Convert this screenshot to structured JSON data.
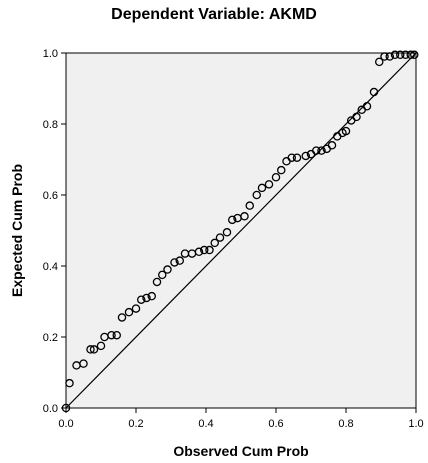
{
  "chart_data": {
    "type": "scatter",
    "title": "Dependent Variable: AKMD",
    "xlabel": "Observed Cum Prob",
    "ylabel": "Expected Cum Prob",
    "xlim": [
      0,
      1
    ],
    "ylim": [
      0,
      1
    ],
    "xticks": [
      "0.0",
      "0.2",
      "0.4",
      "0.6",
      "0.8",
      "1.0"
    ],
    "yticks": [
      "0.0",
      "0.2",
      "0.4",
      "0.6",
      "0.8",
      "1.0"
    ],
    "grid": false,
    "reference_line": {
      "x": [
        0,
        1
      ],
      "y": [
        0,
        1
      ]
    },
    "plot_background": "#f0f0f0",
    "marker_color": "#000000",
    "series": [
      {
        "x": [
          0.0,
          0.01,
          0.03,
          0.05,
          0.07,
          0.08,
          0.1,
          0.11,
          0.13,
          0.145,
          0.16,
          0.18,
          0.2,
          0.215,
          0.23,
          0.245,
          0.26,
          0.275,
          0.29,
          0.31,
          0.325,
          0.34,
          0.36,
          0.38,
          0.395,
          0.41,
          0.425,
          0.44,
          0.46,
          0.475,
          0.49,
          0.51,
          0.525,
          0.545,
          0.56,
          0.58,
          0.6,
          0.615,
          0.63,
          0.645,
          0.66,
          0.685,
          0.7,
          0.715,
          0.73,
          0.745,
          0.76,
          0.775,
          0.79,
          0.8,
          0.815,
          0.83,
          0.845,
          0.86,
          0.88,
          0.895,
          0.91,
          0.925,
          0.94,
          0.955,
          0.97,
          0.985,
          0.995
        ],
        "y": [
          0.0,
          0.07,
          0.12,
          0.125,
          0.165,
          0.165,
          0.175,
          0.2,
          0.205,
          0.205,
          0.255,
          0.27,
          0.28,
          0.305,
          0.31,
          0.315,
          0.355,
          0.375,
          0.39,
          0.41,
          0.415,
          0.435,
          0.435,
          0.44,
          0.445,
          0.445,
          0.465,
          0.48,
          0.495,
          0.53,
          0.535,
          0.54,
          0.57,
          0.6,
          0.62,
          0.63,
          0.65,
          0.67,
          0.695,
          0.705,
          0.705,
          0.71,
          0.715,
          0.725,
          0.725,
          0.73,
          0.74,
          0.765,
          0.775,
          0.78,
          0.81,
          0.82,
          0.84,
          0.85,
          0.89,
          0.975,
          0.99,
          0.99,
          0.995,
          0.995,
          0.995,
          0.995,
          0.995
        ]
      }
    ]
  }
}
